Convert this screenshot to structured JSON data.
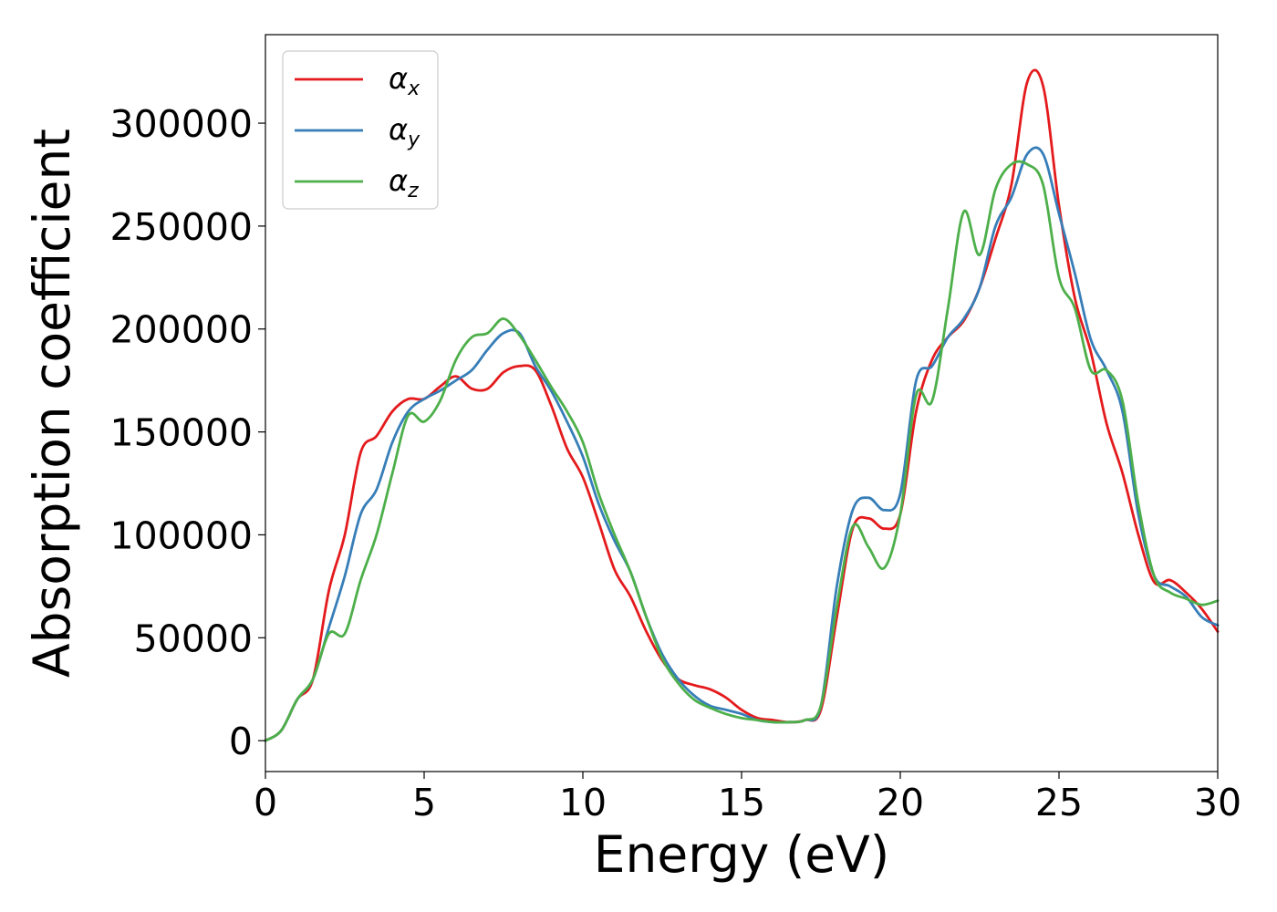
{
  "chart_data": {
    "type": "line",
    "title": "",
    "xlabel": "Energy (eV)",
    "ylabel": "Absorption coefficient",
    "xlim": [
      0,
      30
    ],
    "ylim": [
      -15000,
      343000
    ],
    "xticks": [
      0,
      5,
      10,
      15,
      20,
      25,
      30
    ],
    "yticks": [
      0,
      50000,
      100000,
      150000,
      200000,
      250000,
      300000
    ],
    "grid": false,
    "legend": "top-left",
    "series": [
      {
        "name": "α_x",
        "label_main": "α",
        "label_sub": "x",
        "color": "#e41a1c",
        "points": [
          [
            0,
            0
          ],
          [
            0.5,
            5000
          ],
          [
            1.0,
            20000
          ],
          [
            1.5,
            30000
          ],
          [
            2.0,
            73000
          ],
          [
            2.5,
            100000
          ],
          [
            3.0,
            140000
          ],
          [
            3.5,
            148000
          ],
          [
            4.0,
            160000
          ],
          [
            4.5,
            166000
          ],
          [
            5.0,
            166000
          ],
          [
            5.5,
            172000
          ],
          [
            6.0,
            177000
          ],
          [
            6.5,
            171000
          ],
          [
            7.0,
            171000
          ],
          [
            7.5,
            179000
          ],
          [
            8.0,
            182000
          ],
          [
            8.5,
            180000
          ],
          [
            9.0,
            163000
          ],
          [
            9.5,
            142000
          ],
          [
            10.0,
            128000
          ],
          [
            10.5,
            106000
          ],
          [
            11.0,
            83000
          ],
          [
            11.5,
            70000
          ],
          [
            12.0,
            53000
          ],
          [
            12.5,
            39000
          ],
          [
            13.0,
            30000
          ],
          [
            13.5,
            27000
          ],
          [
            14.0,
            25000
          ],
          [
            14.5,
            21000
          ],
          [
            15.0,
            15000
          ],
          [
            15.5,
            11000
          ],
          [
            16.0,
            10000
          ],
          [
            16.5,
            9000
          ],
          [
            17.0,
            10000
          ],
          [
            17.5,
            15000
          ],
          [
            18.0,
            60000
          ],
          [
            18.5,
            103000
          ],
          [
            19.0,
            108000
          ],
          [
            19.5,
            103000
          ],
          [
            20.0,
            110000
          ],
          [
            20.5,
            160000
          ],
          [
            21.0,
            185000
          ],
          [
            21.5,
            196000
          ],
          [
            22.0,
            204000
          ],
          [
            22.5,
            220000
          ],
          [
            23.0,
            244000
          ],
          [
            23.5,
            270000
          ],
          [
            24.0,
            320000
          ],
          [
            24.5,
            318000
          ],
          [
            25.0,
            260000
          ],
          [
            25.5,
            215000
          ],
          [
            26.0,
            189000
          ],
          [
            26.5,
            154000
          ],
          [
            27.0,
            130000
          ],
          [
            27.5,
            100000
          ],
          [
            28.0,
            77000
          ],
          [
            28.5,
            78000
          ],
          [
            29.0,
            72000
          ],
          [
            29.5,
            64000
          ],
          [
            30.0,
            53000
          ]
        ]
      },
      {
        "name": "α_y",
        "label_main": "α",
        "label_sub": "y",
        "color": "#377eb8",
        "points": [
          [
            0,
            0
          ],
          [
            0.5,
            5000
          ],
          [
            1.0,
            20000
          ],
          [
            1.5,
            30000
          ],
          [
            2.0,
            55000
          ],
          [
            2.5,
            80000
          ],
          [
            3.0,
            110000
          ],
          [
            3.5,
            122000
          ],
          [
            4.0,
            145000
          ],
          [
            4.5,
            160000
          ],
          [
            5.0,
            166000
          ],
          [
            5.5,
            170000
          ],
          [
            6.0,
            175000
          ],
          [
            6.5,
            180000
          ],
          [
            7.0,
            190000
          ],
          [
            7.5,
            198000
          ],
          [
            8.0,
            198000
          ],
          [
            8.5,
            182000
          ],
          [
            9.0,
            170000
          ],
          [
            9.5,
            155000
          ],
          [
            10.0,
            138000
          ],
          [
            10.5,
            115000
          ],
          [
            11.0,
            97000
          ],
          [
            11.5,
            82000
          ],
          [
            12.0,
            60000
          ],
          [
            12.5,
            42000
          ],
          [
            13.0,
            30000
          ],
          [
            13.5,
            22000
          ],
          [
            14.0,
            17000
          ],
          [
            14.5,
            15000
          ],
          [
            15.0,
            13000
          ],
          [
            15.5,
            10000
          ],
          [
            16.0,
            9000
          ],
          [
            16.5,
            9000
          ],
          [
            17.0,
            10000
          ],
          [
            17.5,
            17000
          ],
          [
            18.0,
            75000
          ],
          [
            18.5,
            112000
          ],
          [
            19.0,
            118000
          ],
          [
            19.5,
            112000
          ],
          [
            20.0,
            120000
          ],
          [
            20.5,
            175000
          ],
          [
            21.0,
            182000
          ],
          [
            21.5,
            196000
          ],
          [
            22.0,
            205000
          ],
          [
            22.5,
            220000
          ],
          [
            23.0,
            250000
          ],
          [
            23.5,
            264000
          ],
          [
            24.0,
            285000
          ],
          [
            24.5,
            285000
          ],
          [
            25.0,
            256000
          ],
          [
            25.5,
            227000
          ],
          [
            26.0,
            195000
          ],
          [
            26.5,
            180000
          ],
          [
            27.0,
            160000
          ],
          [
            27.5,
            110000
          ],
          [
            28.0,
            80000
          ],
          [
            28.5,
            75000
          ],
          [
            29.0,
            70000
          ],
          [
            29.5,
            60000
          ],
          [
            30.0,
            56000
          ]
        ]
      },
      {
        "name": "α_z",
        "label_main": "α",
        "label_sub": "z",
        "color": "#4daf4a",
        "points": [
          [
            0,
            0
          ],
          [
            0.5,
            5000
          ],
          [
            1.0,
            20000
          ],
          [
            1.5,
            30000
          ],
          [
            2.0,
            52000
          ],
          [
            2.5,
            52000
          ],
          [
            3.0,
            78000
          ],
          [
            3.5,
            100000
          ],
          [
            4.0,
            130000
          ],
          [
            4.5,
            158000
          ],
          [
            5.0,
            155000
          ],
          [
            5.5,
            165000
          ],
          [
            6.0,
            185000
          ],
          [
            6.5,
            196000
          ],
          [
            7.0,
            198000
          ],
          [
            7.5,
            205000
          ],
          [
            8.0,
            197000
          ],
          [
            8.5,
            185000
          ],
          [
            9.0,
            172000
          ],
          [
            9.5,
            160000
          ],
          [
            10.0,
            145000
          ],
          [
            10.5,
            120000
          ],
          [
            11.0,
            100000
          ],
          [
            11.5,
            82000
          ],
          [
            12.0,
            60000
          ],
          [
            12.5,
            40000
          ],
          [
            13.0,
            28000
          ],
          [
            13.5,
            20000
          ],
          [
            14.0,
            16000
          ],
          [
            14.5,
            13000
          ],
          [
            15.0,
            11000
          ],
          [
            15.5,
            10000
          ],
          [
            16.0,
            9000
          ],
          [
            16.5,
            9000
          ],
          [
            17.0,
            10000
          ],
          [
            17.5,
            17000
          ],
          [
            18.0,
            65000
          ],
          [
            18.5,
            104000
          ],
          [
            19.0,
            94000
          ],
          [
            19.5,
            84000
          ],
          [
            20.0,
            110000
          ],
          [
            20.5,
            168000
          ],
          [
            21.0,
            165000
          ],
          [
            21.5,
            210000
          ],
          [
            22.0,
            257000
          ],
          [
            22.5,
            236000
          ],
          [
            23.0,
            268000
          ],
          [
            23.5,
            280000
          ],
          [
            24.0,
            280000
          ],
          [
            24.5,
            270000
          ],
          [
            25.0,
            225000
          ],
          [
            25.5,
            210000
          ],
          [
            26.0,
            180000
          ],
          [
            26.5,
            180000
          ],
          [
            27.0,
            165000
          ],
          [
            27.5,
            115000
          ],
          [
            28.0,
            80000
          ],
          [
            28.5,
            72000
          ],
          [
            29.0,
            69000
          ],
          [
            29.5,
            66000
          ],
          [
            30.0,
            68000
          ]
        ]
      }
    ]
  }
}
